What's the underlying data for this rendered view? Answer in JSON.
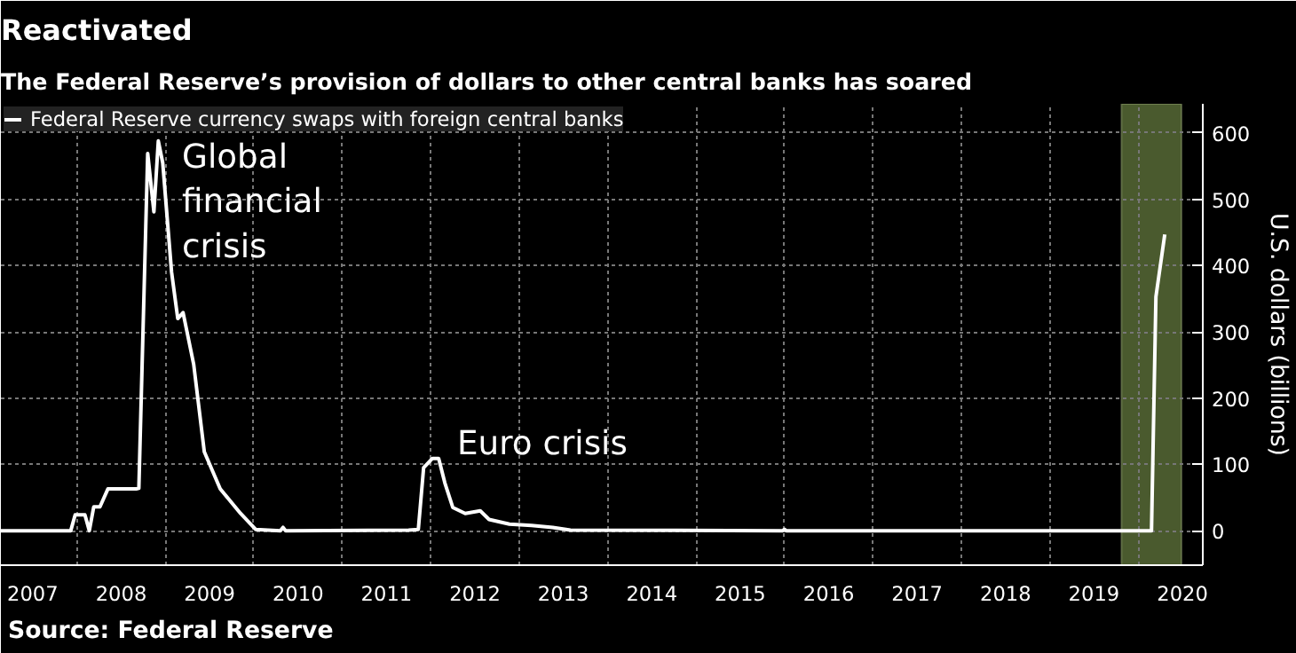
{
  "chart_data": {
    "type": "line",
    "title": "Reactivated",
    "subtitle": "The Federal Reserve’s provision of dollars to other central banks has soared",
    "ylabel": "U.S. dollars (billions)",
    "x": [
      2007.14,
      2007.93,
      2007.98,
      2008.09,
      2008.14,
      2008.19,
      2008.26,
      2008.35,
      2008.67,
      2008.7,
      2008.8,
      2008.87,
      2008.92,
      2008.97,
      2009.07,
      2009.14,
      2009.2,
      2009.32,
      2009.44,
      2009.62,
      2009.85,
      2010.02,
      2010.3,
      2010.33,
      2010.36,
      2011.75,
      2011.86,
      2011.92,
      2012.02,
      2012.09,
      2012.16,
      2012.25,
      2012.39,
      2012.56,
      2012.66,
      2012.89,
      2013.14,
      2013.38,
      2013.58,
      2015.98,
      2016.0,
      2016.02,
      2020.15,
      2020.2,
      2020.3
    ],
    "series": [
      {
        "name": "Federal Reserve currency swaps with foreign central banks",
        "color": "#ffffff",
        "values": [
          0,
          0,
          24,
          24,
          0,
          36,
          36,
          63,
          63,
          64,
          569,
          481,
          588,
          555,
          390,
          320,
          329,
          251,
          119,
          63,
          26,
          2,
          0,
          5,
          0,
          1,
          2,
          95,
          109,
          109,
          72,
          35,
          26,
          30,
          17,
          10,
          8,
          5,
          1,
          0,
          2,
          0,
          0,
          353,
          447
        ]
      }
    ],
    "xlim": [
      2007.14,
      2020.73
    ],
    "ylim": [
      -52,
      644
    ],
    "xticks": [
      {
        "value": 2007.5,
        "label": "2007"
      },
      {
        "value": 2008.5,
        "label": "2008"
      },
      {
        "value": 2009.5,
        "label": "2009"
      },
      {
        "value": 2010.5,
        "label": "2010"
      },
      {
        "value": 2011.5,
        "label": "2011"
      },
      {
        "value": 2012.5,
        "label": "2012"
      },
      {
        "value": 2013.5,
        "label": "2013"
      },
      {
        "value": 2014.5,
        "label": "2014"
      },
      {
        "value": 2015.5,
        "label": "2015"
      },
      {
        "value": 2016.5,
        "label": "2016"
      },
      {
        "value": 2017.5,
        "label": "2017"
      },
      {
        "value": 2018.5,
        "label": "2018"
      },
      {
        "value": 2019.5,
        "label": "2019"
      },
      {
        "value": 2020.5,
        "label": "2020"
      },
      {
        "value": 2008,
        "label": null
      },
      {
        "value": 2009,
        "label": null
      },
      {
        "value": 2010,
        "label": null
      },
      {
        "value": 2011,
        "label": null
      },
      {
        "value": 2012,
        "label": null
      },
      {
        "value": 2013,
        "label": null
      },
      {
        "value": 2014,
        "label": null
      },
      {
        "value": 2015,
        "label": null
      },
      {
        "value": 2016,
        "label": null
      },
      {
        "value": 2017,
        "label": null
      },
      {
        "value": 2018,
        "label": null
      },
      {
        "value": 2019,
        "label": null
      },
      {
        "value": 2020,
        "label": null
      }
    ],
    "yticks": [
      0,
      100,
      200,
      300,
      400,
      500,
      600
    ],
    "bands": [
      {
        "axis": "x",
        "from": 2019.81,
        "to": 2020.49,
        "color": "#4a5a2e"
      }
    ],
    "annotations": [
      "Global\nfinancial\ncrisis",
      "Euro crisis",
      "Source: Federal Reserve"
    ],
    "grid": true,
    "legend": "top left"
  }
}
